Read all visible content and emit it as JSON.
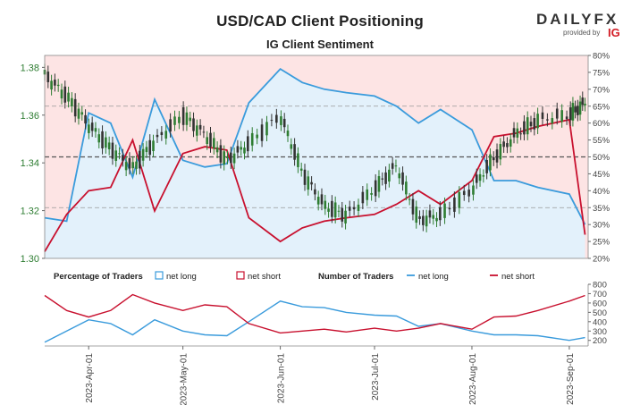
{
  "header": {
    "title": "USD/CAD Client Positioning",
    "subtitle": "IG Client Sentiment",
    "logo_text": "DAILYFX",
    "logo_provided": "provided by",
    "logo_ig": "IG"
  },
  "colors": {
    "net_long": "#3a9bdc",
    "net_short": "#c8102e",
    "price_up": "#2e7d32",
    "price_down": "#333333",
    "short_bg": "#fde4e4",
    "long_fill": "#e3f1fb",
    "axis_tick": "#2e7d32"
  },
  "legend": {
    "percent_label": "Percentage of Traders",
    "net_long": "net long",
    "net_short": "net short",
    "number_label": "Number of Traders"
  },
  "chart_data": [
    {
      "type": "line",
      "name": "price-and-sentiment",
      "x_dates": [
        "2023-03-18",
        "2023-03-25",
        "2023-04-01",
        "2023-04-08",
        "2023-04-15",
        "2023-04-22",
        "2023-05-01",
        "2023-05-08",
        "2023-05-15",
        "2023-05-22",
        "2023-06-01",
        "2023-06-08",
        "2023-06-15",
        "2023-06-22",
        "2023-07-01",
        "2023-07-08",
        "2023-07-15",
        "2023-07-22",
        "2023-08-01",
        "2023-08-08",
        "2023-08-15",
        "2023-08-22",
        "2023-09-01",
        "2023-09-06"
      ],
      "series": [
        {
          "name": "net long",
          "axis": "right",
          "unit": "%",
          "values": [
            32,
            31,
            63,
            60,
            44,
            67,
            49,
            47,
            48,
            66,
            76,
            72,
            70,
            69,
            68,
            65,
            60,
            64,
            58,
            43,
            43,
            41,
            39,
            30
          ]
        },
        {
          "name": "net short",
          "axis": "right",
          "unit": "%",
          "values": [
            22,
            33,
            40,
            41,
            55,
            34,
            51,
            53,
            52,
            32,
            25,
            29,
            31,
            32,
            33,
            36,
            40,
            36,
            43,
            56,
            57,
            59,
            61,
            27
          ]
        },
        {
          "name": "USD/CAD",
          "axis": "left",
          "values": [
            1.377,
            1.368,
            1.356,
            1.346,
            1.338,
            1.349,
            1.36,
            1.352,
            1.341,
            1.348,
            1.36,
            1.336,
            1.322,
            1.318,
            1.329,
            1.339,
            1.316,
            1.318,
            1.329,
            1.342,
            1.352,
            1.358,
            1.36,
            1.365
          ]
        }
      ],
      "y_left": {
        "ticks": [
          "1.30",
          "1.32",
          "1.34",
          "1.36",
          "1.38"
        ],
        "range": [
          1.3,
          1.385
        ]
      },
      "y_right": {
        "ticks": [
          "20%",
          "25%",
          "30%",
          "35%",
          "40%",
          "45%",
          "50%",
          "55%",
          "60%",
          "65%",
          "70%",
          "75%",
          "80%"
        ],
        "range": [
          20,
          80
        ]
      },
      "grid": "dashed at 35%, 50%, 65% on right axis"
    },
    {
      "type": "line",
      "name": "number-of-traders",
      "series": [
        {
          "name": "net long",
          "values": [
            180,
            300,
            420,
            380,
            260,
            420,
            300,
            260,
            250,
            400,
            620,
            560,
            550,
            500,
            470,
            460,
            350,
            380,
            300,
            260,
            260,
            250,
            200,
            230
          ]
        },
        {
          "name": "net short",
          "values": [
            680,
            520,
            450,
            520,
            690,
            600,
            520,
            580,
            560,
            380,
            280,
            300,
            320,
            290,
            330,
            300,
            330,
            380,
            320,
            450,
            460,
            520,
            620,
            680
          ]
        }
      ],
      "y_right": {
        "ticks": [
          "200",
          "300",
          "400",
          "500",
          "600",
          "700",
          "800"
        ],
        "range": [
          140,
          800
        ]
      }
    }
  ],
  "x_axis": {
    "tick_labels": [
      "2023-Apr-01",
      "2023-May-01",
      "2023-Jun-01",
      "2023-Jul-01",
      "2023-Aug-01",
      "2023-Sep-01"
    ],
    "tick_dates": [
      "2023-04-01",
      "2023-05-01",
      "2023-06-01",
      "2023-07-01",
      "2023-08-01",
      "2023-09-01"
    ],
    "start_date": "2023-03-18",
    "end_date": "2023-09-07"
  }
}
